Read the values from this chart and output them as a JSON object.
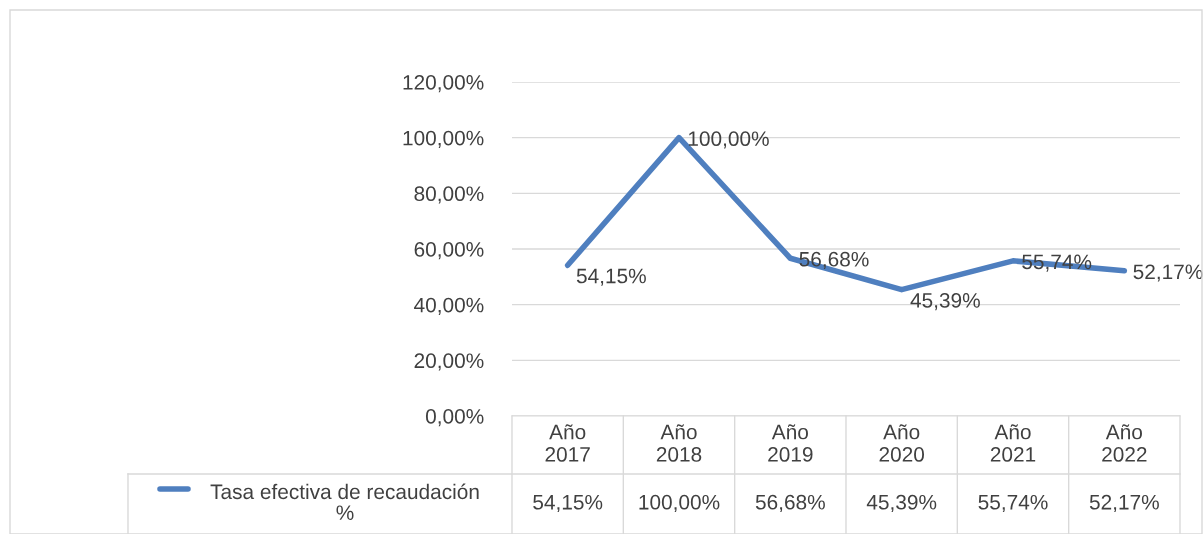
{
  "chart_data": {
    "type": "line",
    "categories": [
      "Año\n2017",
      "Año\n2018",
      "Año\n2019",
      "Año\n2020",
      "Año\n2021",
      "Año\n2022"
    ],
    "series": [
      {
        "name": "Tasa efectiva de recaudación\n%",
        "color": "#4f7fbf",
        "values": [
          54.15,
          100.0,
          56.68,
          45.39,
          55.74,
          52.17
        ],
        "value_labels": [
          "54,15%",
          "100,00%",
          "56,68%",
          "45,39%",
          "55,74%",
          "52,17%"
        ]
      }
    ],
    "ylim": [
      0,
      120
    ],
    "yticks": [
      {
        "value": 0,
        "label": "0,00%"
      },
      {
        "value": 20,
        "label": "20,00%"
      },
      {
        "value": 40,
        "label": "40,00%"
      },
      {
        "value": 60,
        "label": "60,00%"
      },
      {
        "value": 80,
        "label": "80,00%"
      },
      {
        "value": 100,
        "label": "100,00%"
      },
      {
        "value": 120,
        "label": "120,00%"
      }
    ],
    "grid": "y",
    "legend": "bottom",
    "marker": "none",
    "line_style": "solid"
  }
}
